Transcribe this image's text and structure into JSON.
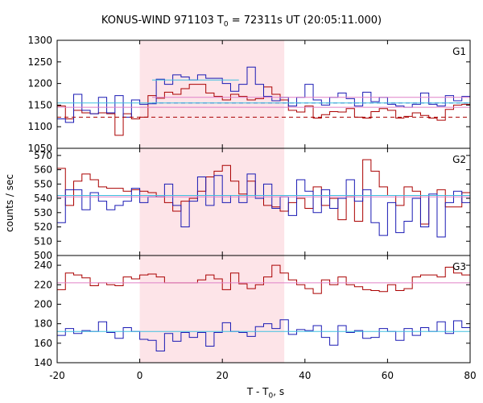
{
  "chart_data": {
    "type": "line",
    "title_prefix": "KONUS-WIND 971103 T",
    "title_sub": "0",
    "title_suffix": " = 72311s UT (20:05:11.000)",
    "ylabel": "counts / sec",
    "xlabel_prefix": "T - T",
    "xlabel_sub": "0",
    "xlabel_suffix": ", s",
    "xlim": [
      -20,
      80
    ],
    "xticks": [
      -20,
      0,
      20,
      40,
      60,
      80
    ],
    "highlight_interval": [
      0,
      35
    ],
    "colors": {
      "red": "#aa0000",
      "blue": "#1a1ab4",
      "pink": "#e080c8",
      "cyan": "#40c0e0",
      "shade": "#fde4e8"
    },
    "panels": [
      {
        "label": "G1",
        "ylim": [
          1050,
          1300
        ],
        "yticks": [
          1050,
          1100,
          1150,
          1200,
          1250,
          1300
        ],
        "series": [
          {
            "color": "red",
            "edges": [
              -20,
              -18,
              -16,
              -14,
              -12,
              -10,
              -8,
              -6,
              -4,
              -2,
              0,
              2,
              4,
              6,
              8,
              10,
              12,
              14,
              16,
              18,
              20,
              22,
              24,
              26,
              28,
              30,
              32,
              34,
              36,
              38,
              40,
              42,
              44,
              46,
              48,
              50,
              52,
              54,
              56,
              58,
              60,
              62,
              64,
              66,
              68,
              70,
              72,
              74,
              76,
              78,
              80
            ],
            "values": [
              1148,
              1118,
              1138,
              1132,
              1130,
              1132,
              1130,
              1080,
              1130,
              1118,
              1122,
              1172,
              1166,
              1180,
              1175,
              1188,
              1198,
              1198,
              1178,
              1170,
              1162,
              1175,
              1170,
              1162,
              1165,
              1192,
              1175,
              1162,
              1138,
              1134,
              1148,
              1120,
              1128,
              1135,
              1134,
              1142,
              1122,
              1120,
              1135,
              1142,
              1138,
              1120,
              1124,
              1132,
              1126,
              1120,
              1115,
              1140,
              1150,
              1152
            ]
          },
          {
            "color": "blue",
            "edges": [
              -20,
              -18,
              -16,
              -14,
              -12,
              -10,
              -8,
              -6,
              -4,
              -2,
              0,
              2,
              4,
              6,
              8,
              10,
              12,
              14,
              16,
              18,
              20,
              22,
              24,
              26,
              28,
              30,
              32,
              34,
              36,
              38,
              40,
              42,
              44,
              46,
              48,
              50,
              52,
              54,
              56,
              58,
              60,
              62,
              64,
              66,
              68,
              70,
              72,
              74,
              76,
              78,
              80
            ],
            "values": [
              1118,
              1110,
              1175,
              1138,
              1130,
              1168,
              1132,
              1172,
              1122,
              1162,
              1152,
              1153,
              1210,
              1198,
              1220,
              1215,
              1208,
              1220,
              1212,
              1212,
              1200,
              1182,
              1198,
              1238,
              1198,
              1170,
              1160,
              1168,
              1148,
              1168,
              1198,
              1162,
              1150,
              1168,
              1178,
              1165,
              1148,
              1180,
              1158,
              1168,
              1152,
              1148,
              1145,
              1152,
              1178,
              1152,
              1148,
              1172,
              1160,
              1170
            ]
          },
          {
            "color": "red",
            "style": "dashed",
            "points": [
              [
                -20,
                1122
              ],
              [
                80,
                1122
              ]
            ]
          },
          {
            "color": "blue",
            "style": "dashed",
            "points": [
              [
                3,
                1155
              ],
              [
                80,
                1155
              ]
            ]
          },
          {
            "color": "pink",
            "points": [
              [
                -20,
                1145
              ],
              [
                80,
                1145
              ]
            ]
          },
          {
            "color": "cyan",
            "points": [
              [
                -20,
                1155
              ],
              [
                80,
                1155
              ]
            ]
          },
          {
            "color": "cyan",
            "points": [
              [
                3,
                1208
              ],
              [
                24,
                1208
              ]
            ]
          },
          {
            "color": "pink",
            "points": [
              [
                3,
                1168
              ],
              [
                80,
                1168
              ]
            ]
          }
        ]
      },
      {
        "label": "G2",
        "ylim": [
          500,
          575
        ],
        "yticks": [
          500,
          510,
          520,
          530,
          540,
          550,
          560,
          570
        ],
        "series": [
          {
            "color": "red",
            "edges": [
              -20,
              -18,
              -16,
              -14,
              -12,
              -10,
              -8,
              -6,
              -4,
              -2,
              0,
              2,
              4,
              6,
              8,
              10,
              12,
              14,
              16,
              18,
              20,
              22,
              24,
              26,
              28,
              30,
              32,
              34,
              36,
              38,
              40,
              42,
              44,
              46,
              48,
              50,
              52,
              54,
              56,
              58,
              60,
              62,
              64,
              66,
              68,
              70,
              72,
              74,
              76,
              78,
              80
            ],
            "values": [
              561,
              535,
              552,
              557,
              553,
              548,
              547,
              547,
              545,
              546,
              545,
              544,
              541,
              537,
              531,
              538,
              540,
              545,
              555,
              559,
              563,
              552,
              543,
              552,
              542,
              535,
              534,
              531,
              537,
              540,
              533,
              548,
              535,
              540,
              525,
              541,
              524,
              567,
              559,
              548,
              542,
              535,
              548,
              545,
              522,
              542,
              546,
              534,
              534,
              544
            ]
          },
          {
            "color": "blue",
            "edges": [
              -20,
              -18,
              -16,
              -14,
              -12,
              -10,
              -8,
              -6,
              -4,
              -2,
              0,
              2,
              4,
              6,
              8,
              10,
              12,
              14,
              16,
              18,
              20,
              22,
              24,
              26,
              28,
              30,
              32,
              34,
              36,
              38,
              40,
              42,
              44,
              46,
              48,
              50,
              52,
              54,
              56,
              58,
              60,
              62,
              64,
              66,
              68,
              70,
              72,
              74,
              76,
              78,
              80
            ],
            "values": [
              523,
              546,
              546,
              532,
              544,
              538,
              532,
              535,
              538,
              547,
              537,
              541,
              541,
              550,
              535,
              520,
              538,
              555,
              535,
              556,
              537,
              542,
              537,
              557,
              540,
              550,
              533,
              541,
              528,
              553,
              545,
              530,
              546,
              533,
              540,
              553,
              538,
              546,
              523,
              514,
              537,
              516,
              524,
              540,
              520,
              543,
              513,
              537,
              545,
              537
            ]
          },
          {
            "color": "pink",
            "points": [
              [
                -20,
                541
              ],
              [
                80,
                541
              ]
            ]
          },
          {
            "color": "cyan",
            "points": [
              [
                -20,
                542
              ],
              [
                80,
                542
              ]
            ]
          }
        ]
      },
      {
        "label": "G3",
        "ylim": [
          140,
          250
        ],
        "yticks": [
          140,
          160,
          180,
          200,
          220,
          240
        ],
        "series": [
          {
            "color": "red",
            "edges": [
              -20,
              -18,
              -16,
              -14,
              -12,
              -10,
              -8,
              -6,
              -4,
              -2,
              0,
              2,
              4,
              6,
              8,
              10,
              12,
              14,
              16,
              18,
              20,
              22,
              24,
              26,
              28,
              30,
              32,
              34,
              36,
              38,
              40,
              42,
              44,
              46,
              48,
              50,
              52,
              54,
              56,
              58,
              60,
              62,
              64,
              66,
              68,
              70,
              72,
              74,
              76,
              78,
              80
            ],
            "values": [
              215,
              232,
              230,
              227,
              219,
              222,
              220,
              219,
              228,
              226,
              230,
              231,
              228,
              222,
              222,
              222,
              222,
              225,
              230,
              226,
              215,
              232,
              221,
              216,
              220,
              228,
              240,
              232,
              225,
              220,
              216,
              211,
              225,
              220,
              228,
              220,
              218,
              215,
              214,
              213,
              220,
              214,
              216,
              228,
              230,
              230,
              228,
              238,
              232,
              230
            ]
          },
          {
            "color": "blue",
            "edges": [
              -20,
              -18,
              -16,
              -14,
              -12,
              -10,
              -8,
              -6,
              -4,
              -2,
              0,
              2,
              4,
              6,
              8,
              10,
              12,
              14,
              16,
              18,
              20,
              22,
              24,
              26,
              28,
              30,
              32,
              34,
              36,
              38,
              40,
              42,
              44,
              46,
              48,
              50,
              52,
              54,
              56,
              58,
              60,
              62,
              64,
              66,
              68,
              70,
              72,
              74,
              76,
              78,
              80
            ],
            "values": [
              168,
              175,
              170,
              173,
              172,
              182,
              171,
              165,
              176,
              172,
              164,
              163,
              152,
              170,
              162,
              171,
              166,
              171,
              157,
              171,
              181,
              172,
              171,
              167,
              177,
              180,
              175,
              184,
              169,
              174,
              173,
              178,
              166,
              158,
              178,
              171,
              173,
              165,
              166,
              175,
              172,
              163,
              175,
              168,
              176,
              172,
              182,
              170,
              183,
              176
            ]
          },
          {
            "color": "pink",
            "points": [
              [
                -20,
                222
              ],
              [
                80,
                222
              ]
            ]
          },
          {
            "color": "cyan",
            "points": [
              [
                -20,
                172
              ],
              [
                80,
                172
              ]
            ]
          }
        ]
      }
    ]
  }
}
